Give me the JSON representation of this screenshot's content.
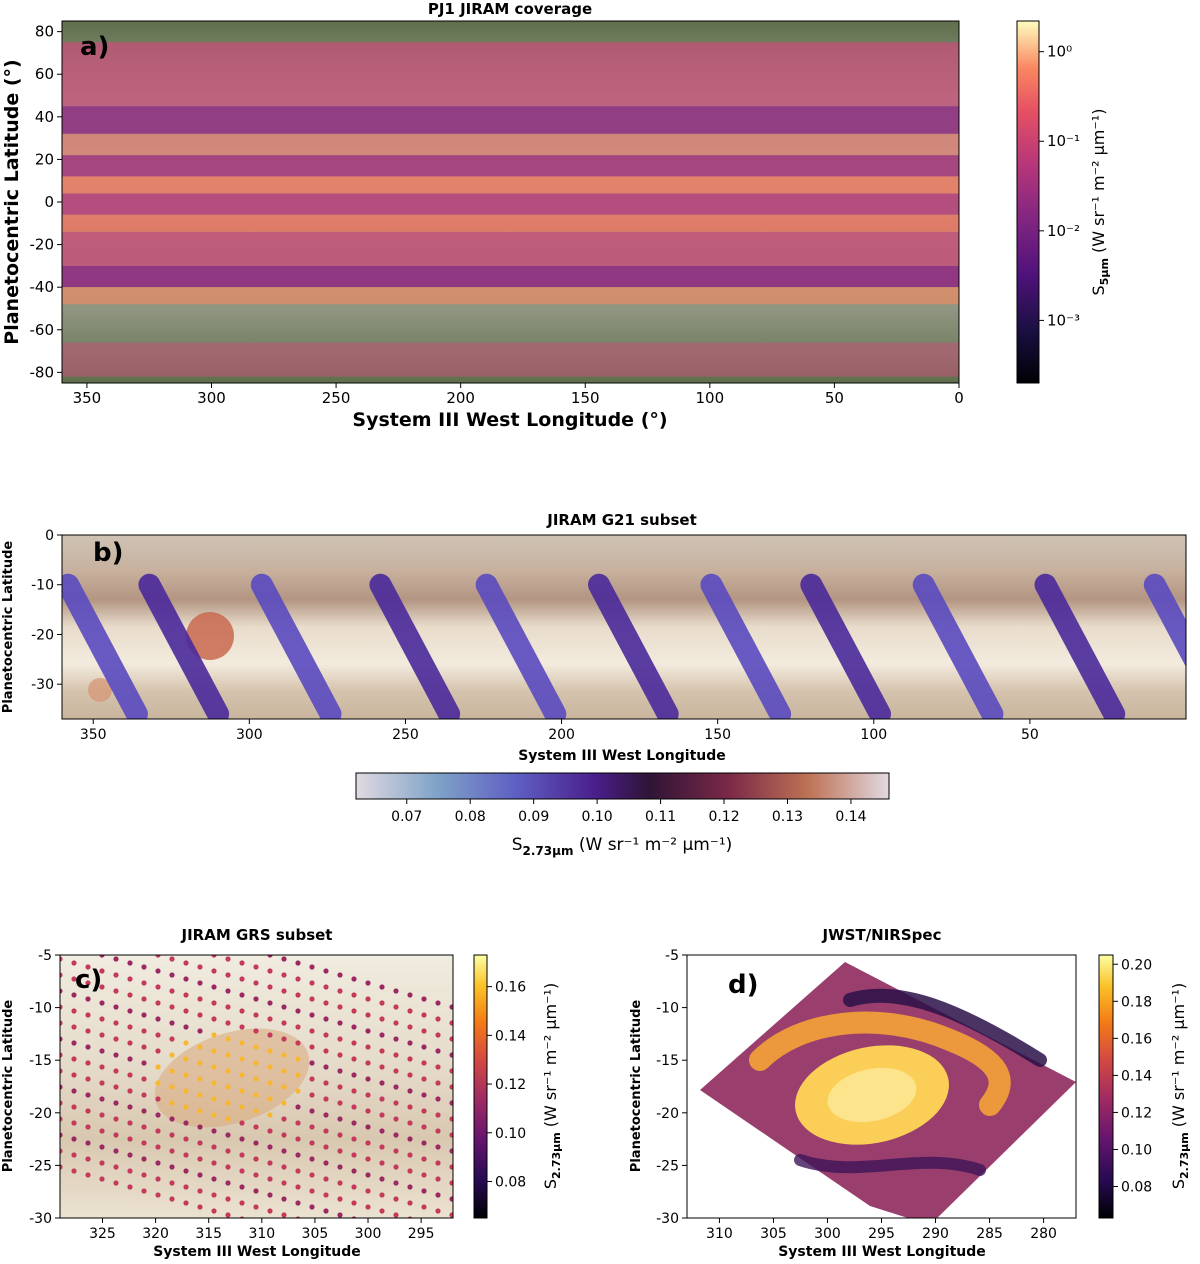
{
  "chart_data": [
    {
      "panel": "a)",
      "type": "heatmap",
      "title": "PJ1 JIRAM coverage",
      "xlabel": "System III West Longitude (°)",
      "ylabel": "Planetocentric Latitude (°)",
      "xlim": [
        360,
        0
      ],
      "ylim": [
        -85,
        85
      ],
      "xticks": [
        350,
        300,
        250,
        200,
        150,
        100,
        50,
        0
      ],
      "yticks": [
        80,
        60,
        40,
        20,
        0,
        -20,
        -40,
        -60,
        -80
      ],
      "colorbar": {
        "label_main": "S",
        "label_sub": "5μm",
        "label_units": "(W sr⁻¹ m⁻² μm⁻¹)",
        "scale": "log",
        "range": [
          0.0002,
          2.2
        ],
        "ticks": [
          {
            "value": 1,
            "label": "10⁰"
          },
          {
            "value": 0.1,
            "label": "10⁻¹"
          },
          {
            "value": 0.01,
            "label": "10⁻²"
          },
          {
            "value": 0.001,
            "label": "10⁻³"
          }
        ],
        "colormap": "magma"
      }
    },
    {
      "panel": "b)",
      "type": "scatter",
      "title": "JIRAM G21 subset",
      "xlabel": "System III West Longitude",
      "ylabel": "Planetocentric Latitude",
      "xlim": [
        360,
        0
      ],
      "ylim": [
        -37,
        0
      ],
      "xticks": [
        350,
        300,
        250,
        200,
        150,
        100,
        50
      ],
      "yticks": [
        0,
        -10,
        -20,
        -30
      ],
      "strips_lon_start": [
        358,
        332,
        296,
        258,
        224,
        188,
        152,
        120,
        84,
        45,
        10
      ],
      "colorbar": {
        "label_main": "S",
        "label_sub": "2.73μm",
        "label_units": "(W sr⁻¹ m⁻² μm⁻¹)",
        "orientation": "horizontal",
        "range": [
          0.062,
          0.146
        ],
        "ticks": [
          "0.07",
          "0.08",
          "0.09",
          "0.10",
          "0.11",
          "0.12",
          "0.13",
          "0.14"
        ],
        "colormap": "twilight"
      }
    },
    {
      "panel": "c)",
      "type": "scatter",
      "title": "JIRAM GRS subset",
      "xlabel": "System III West Longitude",
      "ylabel": "Planetocentric Latitude",
      "xlim": [
        329,
        292
      ],
      "ylim": [
        -30,
        -5
      ],
      "xticks": [
        325,
        320,
        315,
        310,
        305,
        300,
        295
      ],
      "yticks": [
        -5,
        -10,
        -15,
        -20,
        -25,
        -30
      ],
      "colorbar": {
        "label_main": "S",
        "label_sub": "2.73μm",
        "label_units": "(W sr⁻¹ m⁻² μm⁻¹)",
        "range": [
          0.065,
          0.173
        ],
        "ticks": [
          "0.08",
          "0.10",
          "0.12",
          "0.14",
          "0.16"
        ],
        "colormap": "inferno"
      }
    },
    {
      "panel": "d)",
      "type": "heatmap",
      "title": "JWST/NIRSpec",
      "xlabel": "System III West Longitude",
      "ylabel": "Planetocentric Latitude",
      "xlim": [
        313,
        277
      ],
      "ylim": [
        -30,
        -5
      ],
      "xticks": [
        310,
        305,
        300,
        295,
        290,
        285,
        280
      ],
      "yticks": [
        -5,
        -10,
        -15,
        -20,
        -25,
        -30
      ],
      "colorbar": {
        "label_main": "S",
        "label_sub": "2.73μm",
        "label_units": "(W sr⁻¹ m⁻² μm⁻¹)",
        "range": [
          0.063,
          0.205
        ],
        "ticks": [
          "0.08",
          "0.10",
          "0.12",
          "0.14",
          "0.16",
          "0.18",
          "0.20"
        ],
        "colormap": "inferno"
      }
    }
  ]
}
